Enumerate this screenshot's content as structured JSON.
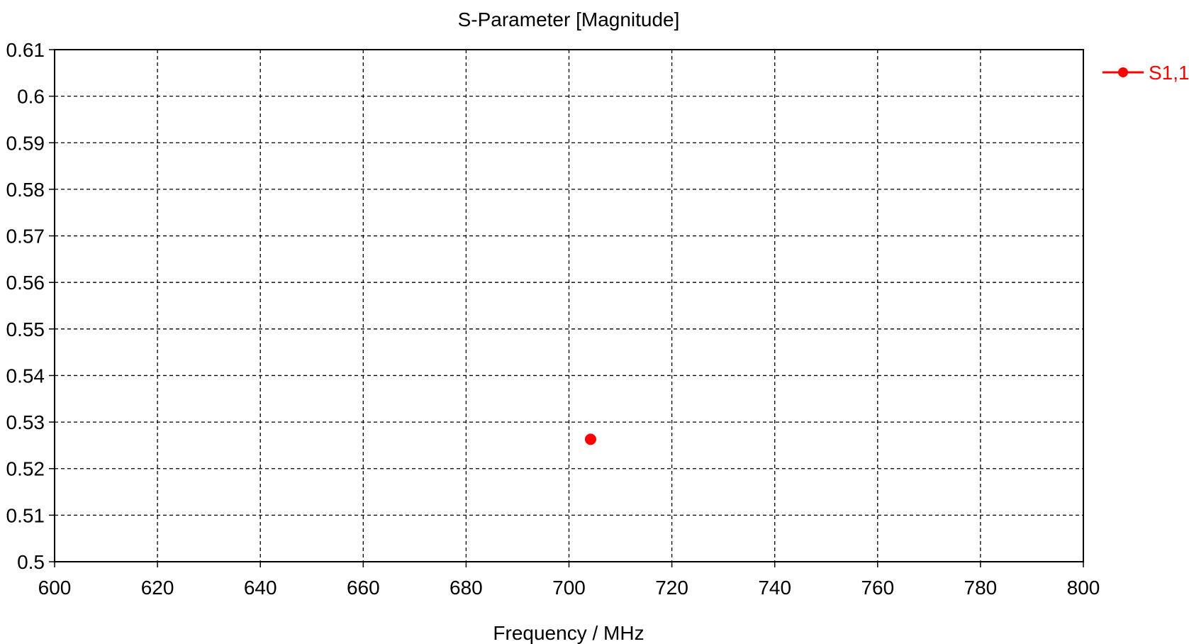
{
  "chart_data": {
    "type": "scatter",
    "title": "S-Parameter [Magnitude]",
    "xlabel": "Frequency / MHz",
    "ylabel": "",
    "xlim": [
      600,
      800
    ],
    "ylim": [
      0.5,
      0.61
    ],
    "x_ticks": [
      600,
      620,
      640,
      660,
      680,
      700,
      720,
      740,
      760,
      780,
      800
    ],
    "x_tick_labels": [
      "600",
      "620",
      "640",
      "660",
      "680",
      "700",
      "720",
      "740",
      "760",
      "780",
      "800"
    ],
    "y_ticks": [
      0.5,
      0.51,
      0.52,
      0.53,
      0.54,
      0.55,
      0.56,
      0.57,
      0.58,
      0.59,
      0.6,
      0.61
    ],
    "y_tick_labels": [
      "0.5",
      "0.51",
      "0.52",
      "0.53",
      "0.54",
      "0.55",
      "0.56",
      "0.57",
      "0.58",
      "0.59",
      "0.6",
      "0.61"
    ],
    "grid": true,
    "grid_style": "dashed",
    "legend_position": "right",
    "series": [
      {
        "name": "S1,1",
        "color": "#ff0000",
        "marker": "circle",
        "x": [
          704.2
        ],
        "y": [
          0.5263
        ]
      }
    ]
  }
}
